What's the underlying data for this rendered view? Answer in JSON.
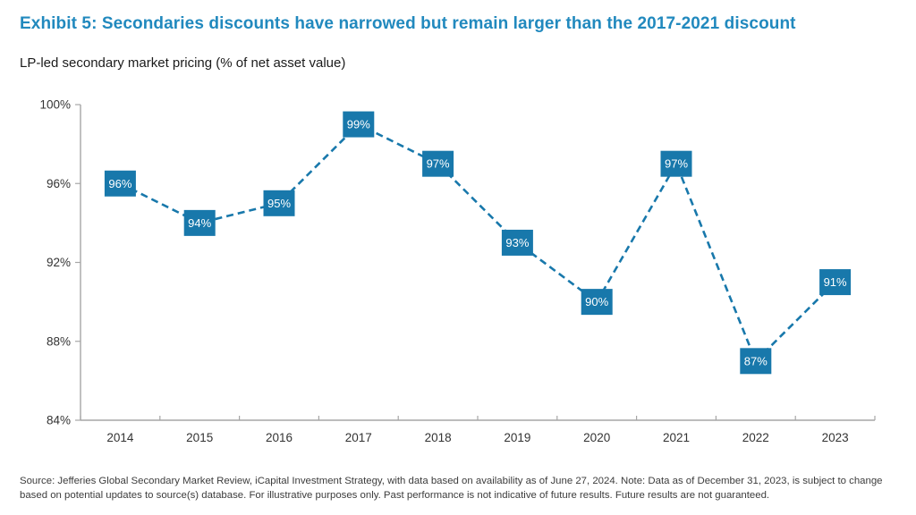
{
  "header": {
    "title": "Exhibit 5: Secondaries discounts have narrowed but remain larger than the 2017-2021 discount",
    "subtitle": "LP-led secondary market pricing (% of net asset value)"
  },
  "chart_data": {
    "type": "line",
    "title": "LP-led secondary market pricing (% of net asset value)",
    "categories": [
      "2014",
      "2015",
      "2016",
      "2017",
      "2018",
      "2019",
      "2020",
      "2021",
      "2022",
      "2023"
    ],
    "values": [
      96,
      94,
      95,
      99,
      97,
      93,
      90,
      97,
      87,
      91
    ],
    "value_labels": [
      "96%",
      "94%",
      "95%",
      "99%",
      "97%",
      "93%",
      "90%",
      "97%",
      "87%",
      "91%"
    ],
    "xlabel": "",
    "ylabel": "",
    "ylim": [
      84,
      100
    ],
    "ytick_labels": [
      "84%",
      "88%",
      "92%",
      "96%",
      "100%"
    ],
    "ytick_values": [
      84,
      88,
      92,
      96,
      100
    ],
    "line_style": "dashed",
    "marker": "square-with-label",
    "grid": false,
    "legend": "none"
  },
  "colors": {
    "title": "#2189be",
    "line": "#1878ab",
    "marker_fill": "#1878ab",
    "marker_label": "#ffffff",
    "axis": "#a6a6a6",
    "tick_label": "#333333",
    "footer_text": "#3c3c3c"
  },
  "footer": {
    "source_note": "Source: Jefferies Global Secondary Market Review, iCapital Investment Strategy, with data based on availability as of June 27, 2024. Note: Data as of December 31, 2023, is subject to change based on potential updates to source(s) database. For illustrative purposes only. Past performance is not indicative of future results. Future results are not guaranteed."
  }
}
